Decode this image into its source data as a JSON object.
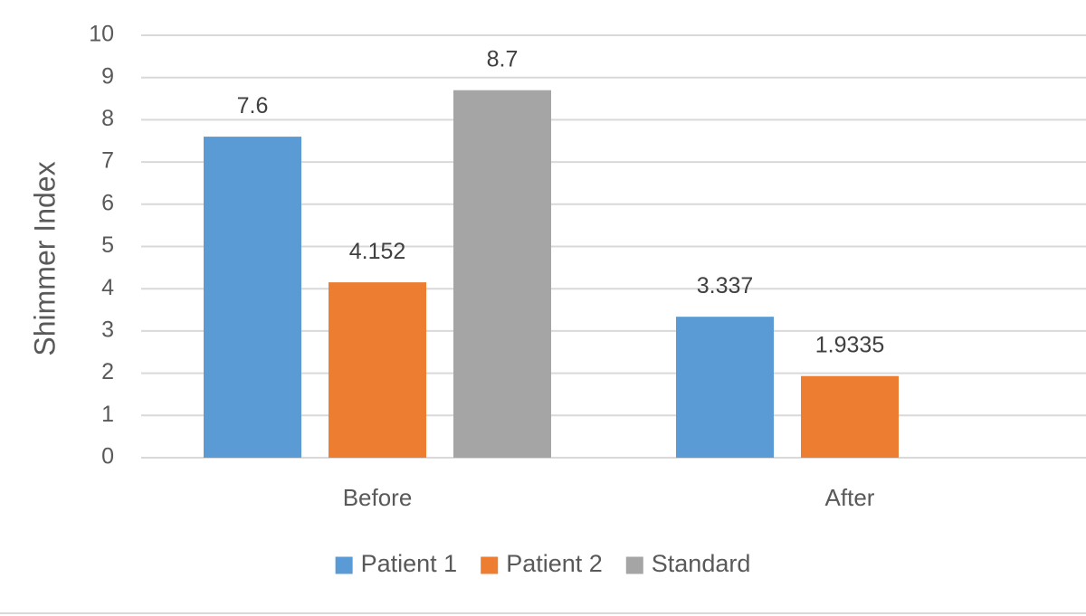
{
  "chart_data": {
    "type": "bar",
    "title": "",
    "xlabel": "",
    "ylabel": "Shimmer Index",
    "ylim": [
      0,
      10
    ],
    "ytick_step": 1,
    "grid": true,
    "legend_position": "bottom",
    "categories": [
      "Before",
      "After"
    ],
    "series": [
      {
        "name": "Patient 1",
        "color": "#5B9BD5",
        "values": [
          7.6,
          3.337
        ],
        "labels": [
          "7.6",
          "3.337"
        ]
      },
      {
        "name": "Patient 2",
        "color": "#ED7D31",
        "values": [
          4.152,
          1.9335
        ],
        "labels": [
          "4.152",
          "1.9335"
        ]
      },
      {
        "name": "Standard",
        "color": "#A5A5A5",
        "values": [
          8.7,
          null
        ],
        "labels": [
          "8.7",
          null
        ]
      }
    ]
  }
}
